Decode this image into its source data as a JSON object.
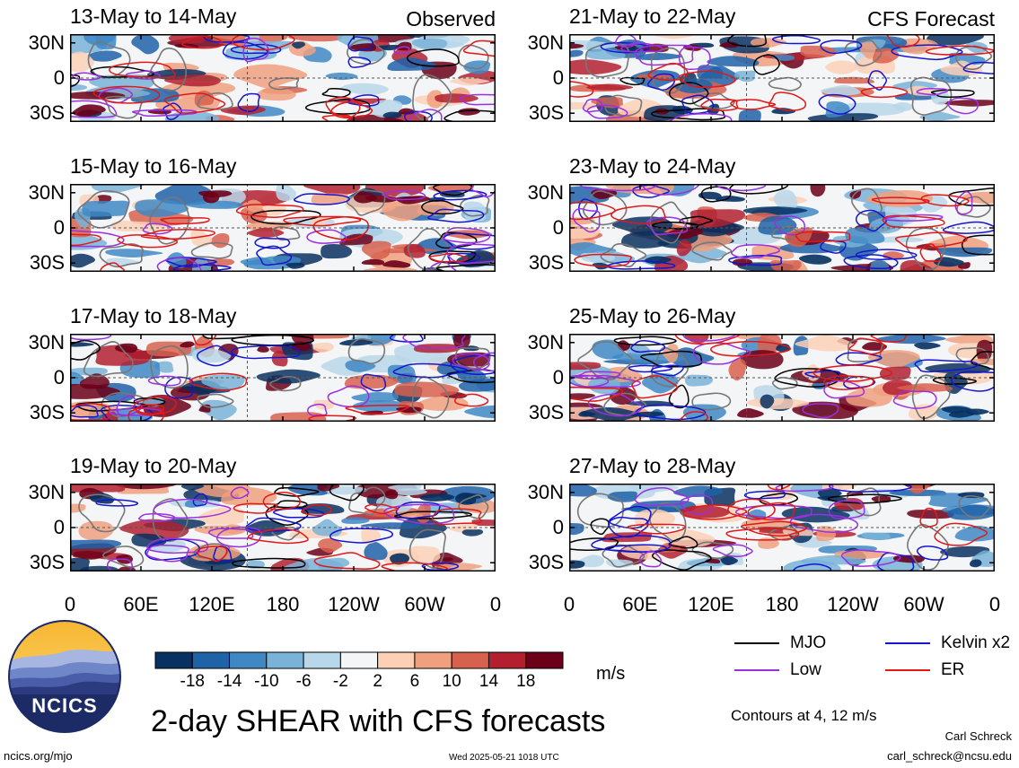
{
  "chart_data": {
    "type": "heatmap",
    "title": "2-day SHEAR with CFS forecasts",
    "columns": [
      {
        "label": "Observed"
      },
      {
        "label": "CFS Forecast"
      }
    ],
    "panels": [
      {
        "col": 0,
        "title": "13-May to 14-May"
      },
      {
        "col": 0,
        "title": "15-May to 16-May"
      },
      {
        "col": 0,
        "title": "17-May to 18-May"
      },
      {
        "col": 0,
        "title": "19-May to 20-May"
      },
      {
        "col": 1,
        "title": "21-May to 22-May"
      },
      {
        "col": 1,
        "title": "23-May to 24-May"
      },
      {
        "col": 1,
        "title": "25-May to 26-May"
      },
      {
        "col": 1,
        "title": "27-May to 28-May"
      }
    ],
    "lat_ticks": [
      "30N",
      "0",
      "30S"
    ],
    "lon_ticks": [
      "0",
      "60E",
      "120E",
      "180",
      "120W",
      "60W",
      "0"
    ],
    "colorbar": {
      "ticks": [
        "-18",
        "-14",
        "-10",
        "-6",
        "-2",
        "2",
        "6",
        "10",
        "14",
        "18"
      ],
      "units": "m/s",
      "colors": [
        "#083060",
        "#1f62a8",
        "#3f88c4",
        "#79b3d8",
        "#b9d7ea",
        "#f4f5f6",
        "#fbd0b7",
        "#f0a07f",
        "#d8604e",
        "#b22030",
        "#6b0018"
      ]
    },
    "legend": [
      {
        "label": "MJO",
        "color": "#000000"
      },
      {
        "label": "Kelvin x2",
        "color": "#1515d0"
      },
      {
        "label": "Low",
        "color": "#9a30e0"
      },
      {
        "label": "ER",
        "color": "#e01818"
      }
    ],
    "contours_note": "Contours at 4, 12 m/s"
  },
  "logo": {
    "text": "NCICS"
  },
  "footer": {
    "site": "ncics.org/mjo",
    "timestamp": "Wed 2025-05-21 1018 UTC",
    "author": "Carl Schreck",
    "email": "carl_schreck@ncsu.edu"
  }
}
